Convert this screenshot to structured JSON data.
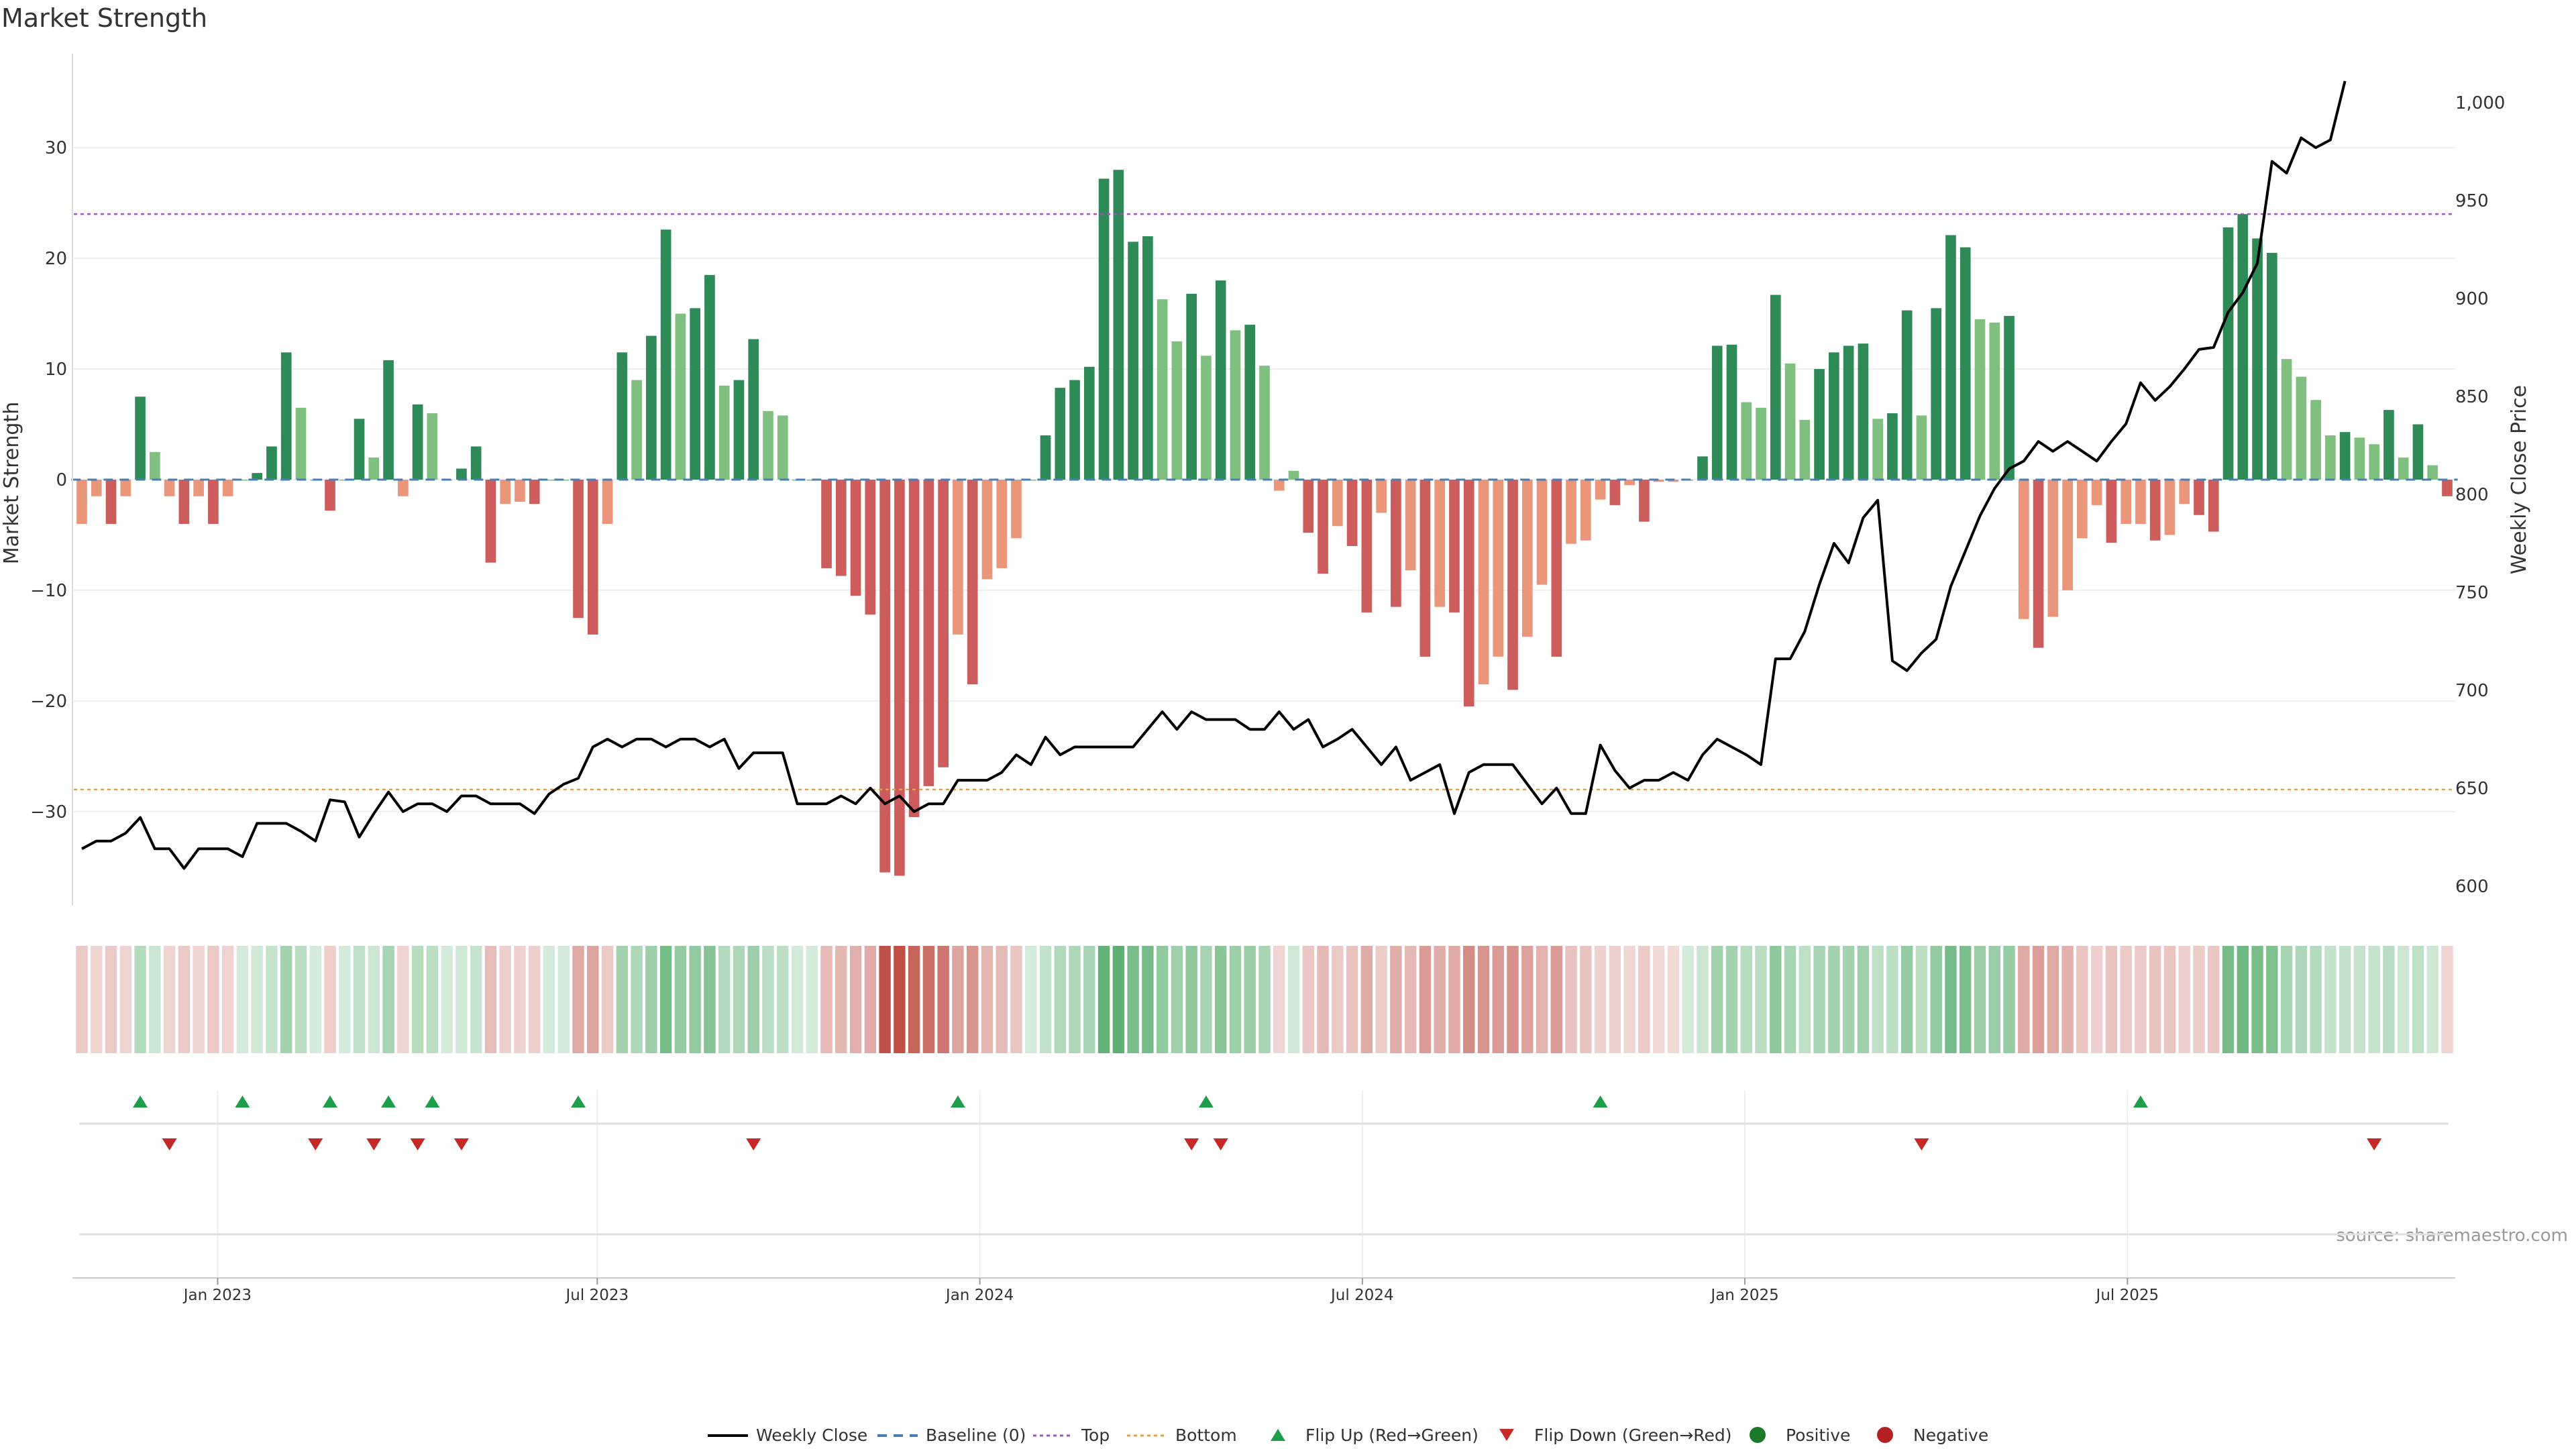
{
  "chart_data": {
    "type": "bar",
    "title": "Market Strength",
    "ylabel_left": "Market Strength",
    "ylabel_right": "Weekly Close Price",
    "source": "source: sharemaestro.com",
    "ylim_left": [
      -38.5,
      38.5
    ],
    "yticks_left": [
      30,
      20,
      10,
      0,
      -10,
      -20,
      -30
    ],
    "ytick_labels_left": [
      "30",
      "20",
      "10",
      "0",
      "−10",
      "−20",
      "−30"
    ],
    "ylim_right": [
      590,
      1025
    ],
    "yticks_right": [
      1000,
      950,
      900,
      850,
      800,
      750,
      700,
      650,
      600
    ],
    "ytick_labels_right": [
      "1,000",
      "950",
      "900",
      "850",
      "800",
      "750",
      "700",
      "650",
      "600"
    ],
    "x_tick_labels": [
      "Jan 2023",
      "Jul 2023",
      "Jan 2024",
      "Jul 2024",
      "Jan 2025",
      "Jul 2025"
    ],
    "x_tick_index": [
      9.3,
      35.3,
      61.5,
      87.7,
      113.9,
      140.1
    ],
    "top_line": 24,
    "bottom_line": -28,
    "strength": [
      -4,
      -1.5,
      -4,
      -1.5,
      7.5,
      2.5,
      -1.5,
      -4,
      -1.5,
      -4,
      -1.5,
      0,
      0.6,
      3,
      11.5,
      6.5,
      0,
      -2.8,
      0,
      5.5,
      2,
      10.8,
      -1.5,
      6.8,
      6,
      0,
      1,
      3,
      -7.5,
      -2.2,
      -2,
      -2.2,
      0,
      0,
      -12.5,
      -14,
      -4,
      11.5,
      9,
      13,
      22.6,
      15,
      15.5,
      18.5,
      8.5,
      9,
      12.7,
      6.2,
      5.8,
      0,
      0,
      -8,
      -8.7,
      -10.5,
      -12.2,
      -35.5,
      -35.8,
      -30.5,
      -27.7,
      -26,
      -14,
      -18.5,
      -9,
      -8,
      -5.3,
      0,
      4,
      8.3,
      9,
      10.2,
      27.2,
      28,
      21.5,
      22,
      16.3,
      12.5,
      16.8,
      11.2,
      18,
      13.5,
      14,
      10.3,
      -1,
      0.8,
      -4.8,
      -8.5,
      -4.2,
      -6,
      -12,
      -3,
      -11.5,
      -8.2,
      -16,
      -11.5,
      -12,
      -20.5,
      -18.5,
      -16,
      -19,
      -14.2,
      -9.5,
      -16,
      -5.8,
      -5.5,
      -1.8,
      -2.3,
      -0.5,
      -3.8,
      -0.2,
      -0.2,
      0,
      2.1,
      12.1,
      12.2,
      7,
      6.5,
      16.7,
      10.5,
      5.4,
      10,
      11.5,
      12.1,
      12.3,
      5.5,
      6,
      15.3,
      5.8,
      15.5,
      22.1,
      21,
      14.5,
      14.2,
      14.8,
      -12.6,
      -15.2,
      -12.4,
      -10,
      -5.3,
      -2.3,
      -5.7,
      -4,
      -4,
      -5.5,
      -5,
      -2.2,
      -3.2,
      -4.7,
      22.8,
      24,
      21.8,
      20.5,
      10.9,
      9.3,
      7.2,
      4,
      4.3,
      3.8,
      3.2,
      6.3,
      2,
      5,
      1.3,
      -1.5
    ],
    "weekly_close": [
      619,
      623,
      623,
      627,
      635,
      619,
      619,
      609,
      619,
      619,
      619,
      615,
      632,
      632,
      632,
      628,
      623,
      644,
      643,
      625,
      637,
      648,
      638,
      642,
      642,
      638,
      646,
      646,
      642,
      642,
      642,
      637,
      647,
      652,
      655,
      671,
      675,
      671,
      675,
      675,
      671,
      675,
      675,
      671,
      675,
      660,
      668,
      668,
      668,
      642,
      642,
      642,
      646,
      642,
      650,
      642,
      646,
      638,
      642,
      642,
      654,
      654,
      654,
      658,
      667,
      662,
      676,
      667,
      671,
      671,
      671,
      671,
      671,
      680,
      689,
      680,
      689,
      685,
      685,
      685,
      680,
      680,
      689,
      680,
      685,
      671,
      675,
      680,
      671,
      662,
      671,
      654,
      658,
      662,
      637,
      658,
      662,
      662,
      662,
      652,
      642,
      650,
      637,
      637,
      672,
      659,
      650,
      654,
      654,
      658,
      654,
      667,
      675,
      671,
      667,
      662,
      716,
      716,
      730,
      754,
      775,
      765,
      788,
      797,
      715,
      710,
      719,
      726,
      753,
      771,
      789,
      803,
      813,
      817,
      827,
      822,
      827,
      822,
      817,
      827,
      836,
      857,
      848,
      855,
      864,
      874,
      875,
      893,
      903,
      918,
      970,
      964,
      982,
      977,
      981,
      1011
    ],
    "flip_up_index": [
      4,
      11,
      17,
      21,
      24,
      34,
      60,
      77,
      104,
      141
    ],
    "flip_down_index": [
      6,
      16,
      20,
      23,
      26,
      46,
      76,
      78,
      126,
      157
    ],
    "legend": [
      "Weekly Close",
      "Baseline (0)",
      "Top",
      "Bottom",
      "Flip Up (Red→Green)",
      "Flip Down (Green→Red)",
      "Positive",
      "Negative"
    ],
    "colors": {
      "strong_pos": "#2e8b57",
      "weak_pos": "#7fbf7f",
      "strong_neg": "#cd5c5c",
      "weak_neg": "#e9967a",
      "line": "#000000",
      "top": "#9b59b6",
      "bottom": "#e0a050",
      "baseline": "#4a7fb5",
      "flip_up": "#1e9e4a",
      "flip_down": "#c62828",
      "positive": "#1a7a2a",
      "negative": "#b22222"
    }
  }
}
